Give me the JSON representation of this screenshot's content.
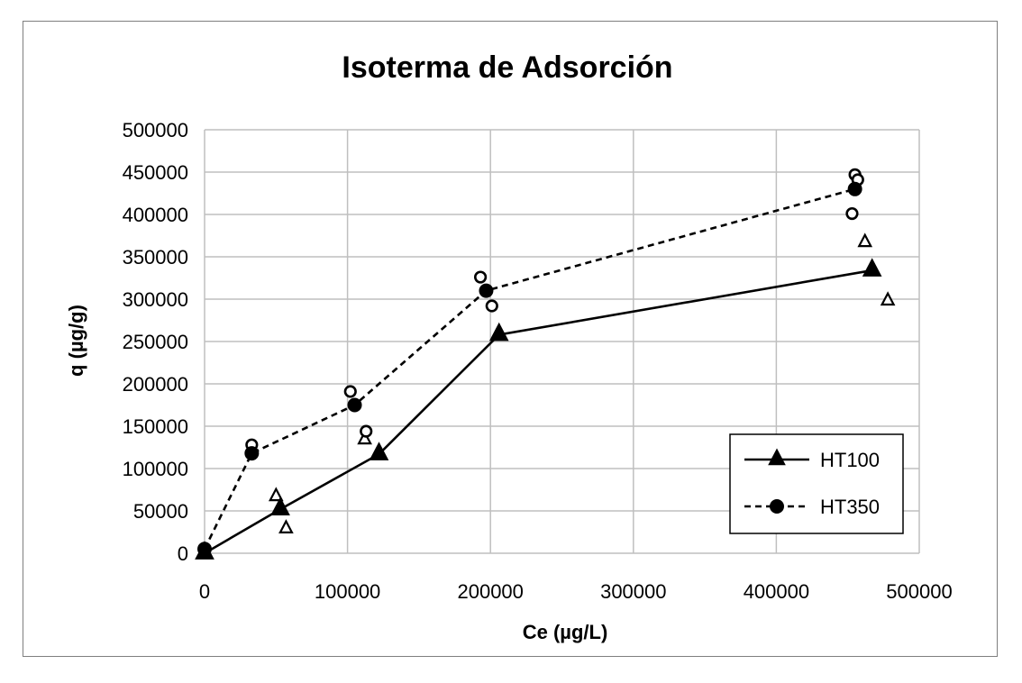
{
  "chart_data": {
    "type": "scatter",
    "title": "Isoterma de Adsorción",
    "xlabel": "Ce (µg/L)",
    "ylabel": "q (µg/g)",
    "xlim": [
      0,
      500000
    ],
    "ylim": [
      0,
      500000
    ],
    "x_ticks": [
      "0",
      "100000",
      "200000",
      "300000",
      "400000",
      "500000"
    ],
    "y_ticks": [
      "0",
      "50000",
      "100000",
      "150000",
      "200000",
      "250000",
      "300000",
      "350000",
      "400000",
      "450000",
      "500000"
    ],
    "grid": true,
    "legend_position": "bottom-right",
    "series": [
      {
        "name": "HT100",
        "line_style": "solid",
        "marker": "filled-triangle",
        "color": "#000000",
        "x": [
          0,
          53000,
          122000,
          206000,
          467000
        ],
        "y": [
          0,
          52000,
          117000,
          258000,
          334000
        ]
      },
      {
        "name": "HT350",
        "line_style": "dashed",
        "marker": "filled-circle",
        "color": "#000000",
        "x": [
          0,
          33000,
          105000,
          197000,
          455000
        ],
        "y": [
          5000,
          118000,
          175000,
          310000,
          430000
        ]
      }
    ],
    "replicates": [
      {
        "of": "HT100",
        "marker": "open-triangle",
        "x": [
          50000,
          57000,
          112000,
          462000,
          478000
        ],
        "y": [
          67000,
          29000,
          134000,
          367000,
          298000
        ]
      },
      {
        "of": "HT350",
        "marker": "open-circle",
        "x": [
          33000,
          102000,
          113000,
          193000,
          201000,
          453000,
          455000,
          457000
        ],
        "y": [
          128000,
          191000,
          144000,
          326000,
          292000,
          401000,
          447000,
          441000
        ]
      }
    ]
  }
}
